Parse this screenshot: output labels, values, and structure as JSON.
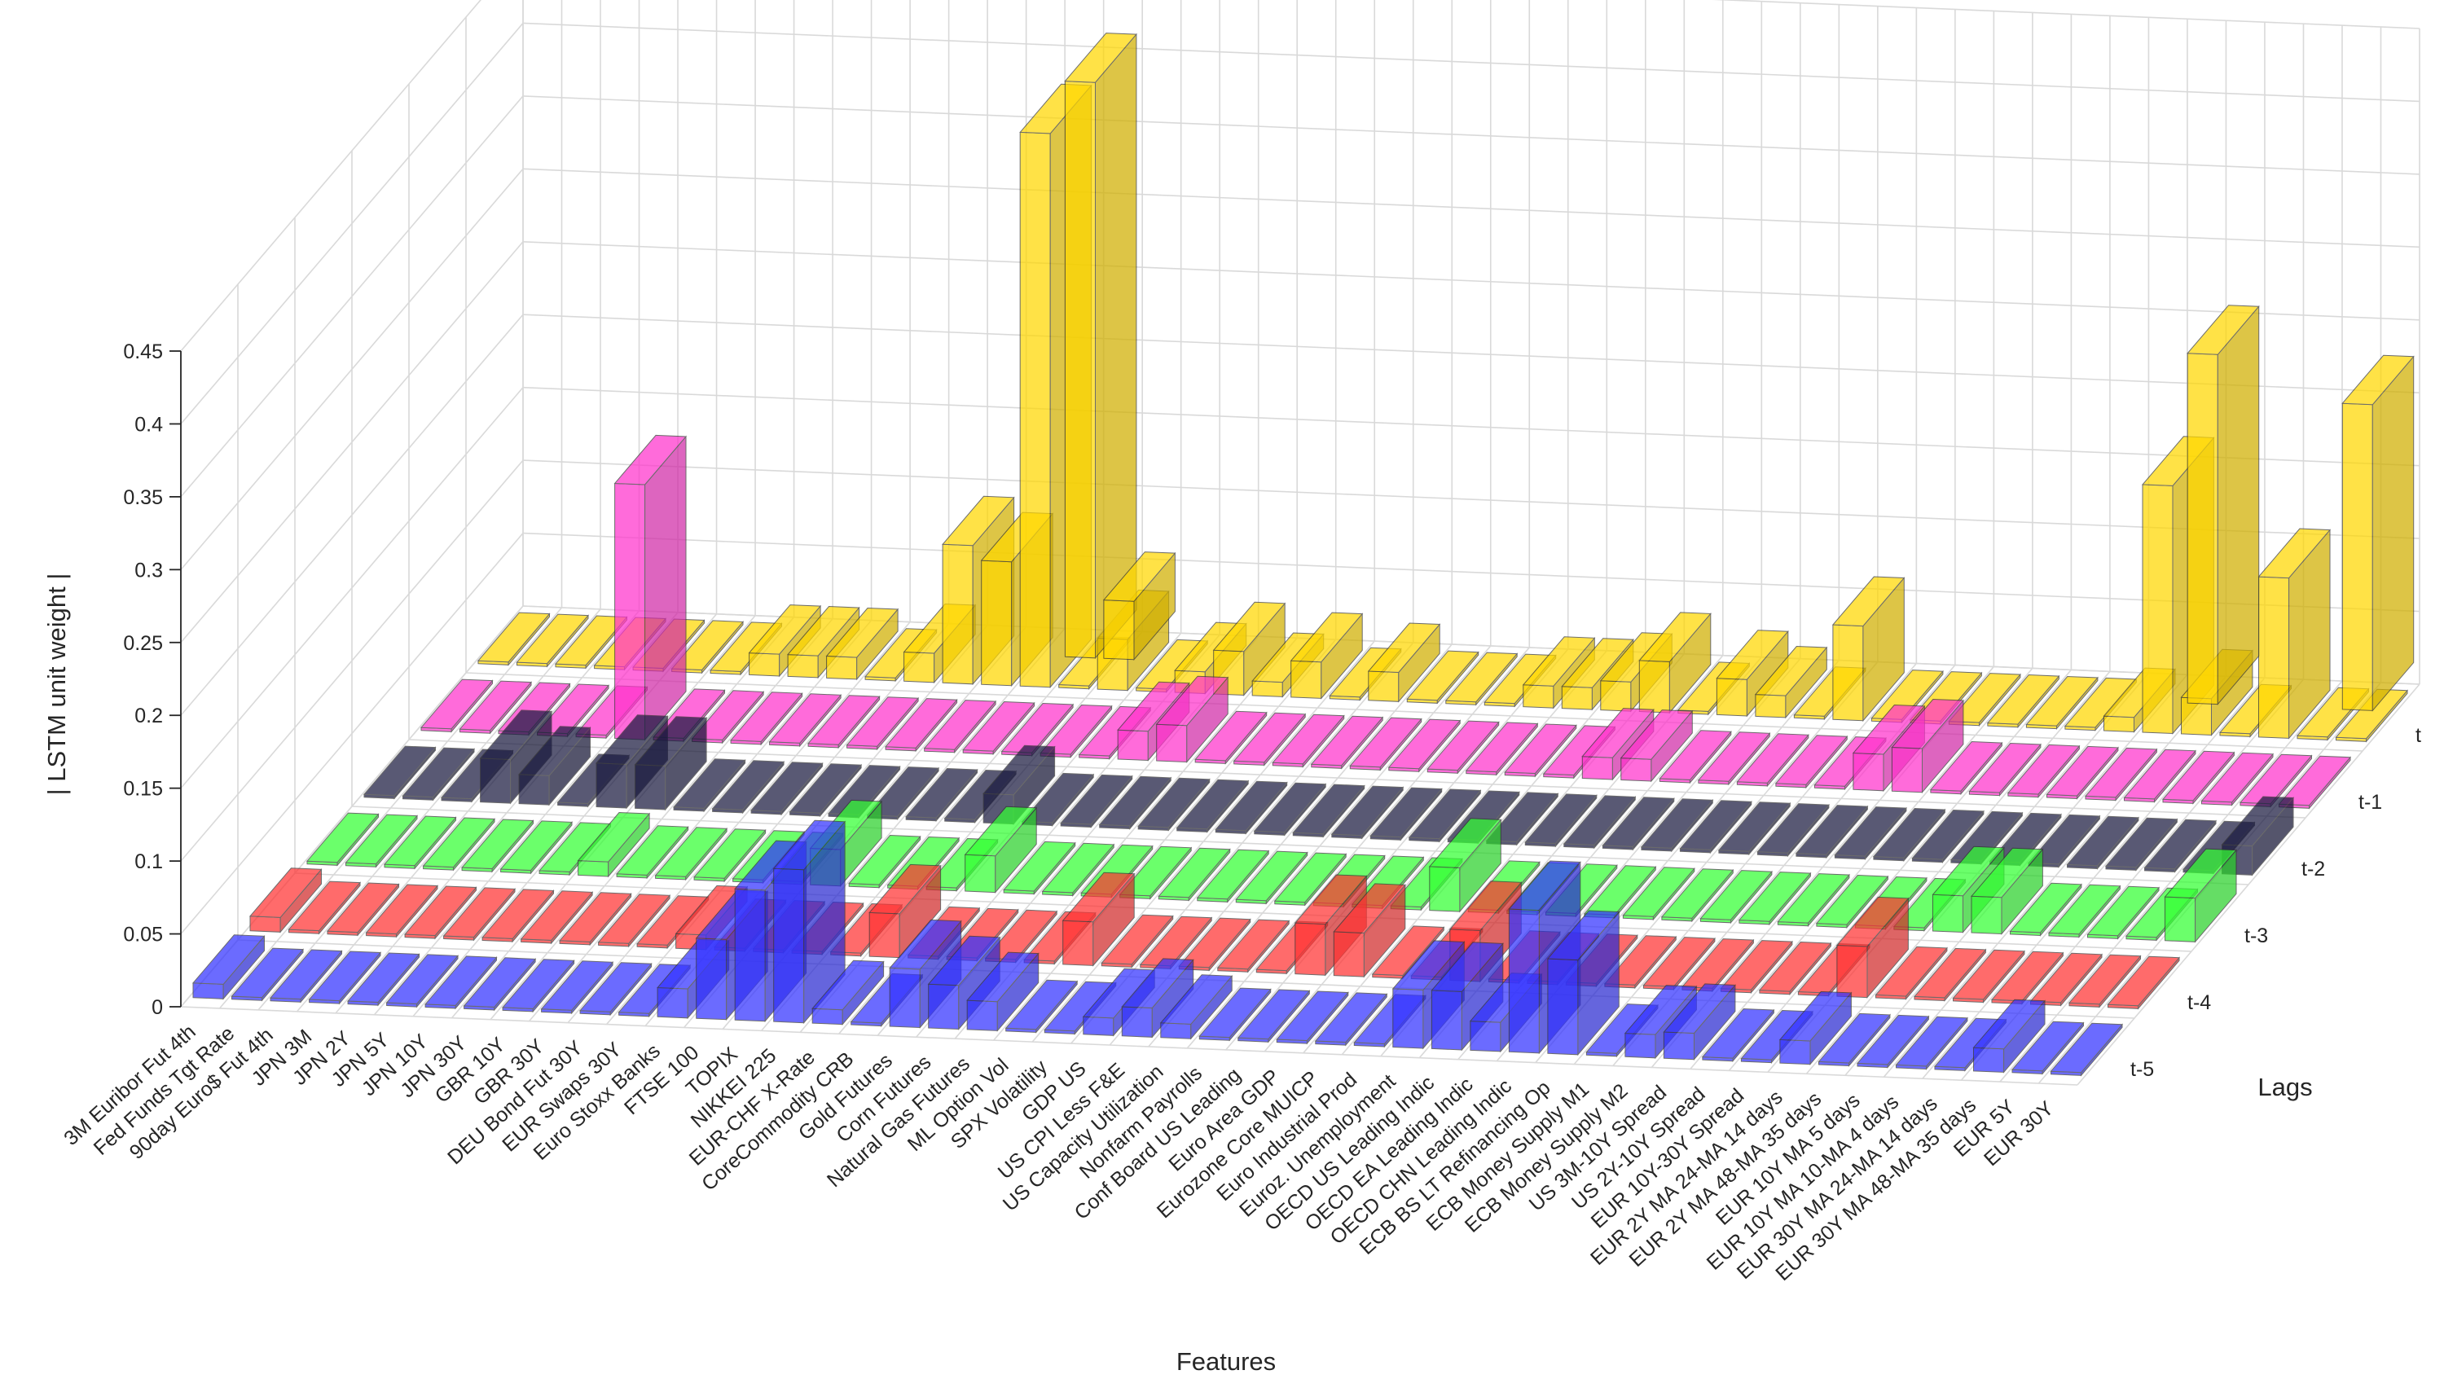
{
  "chart_data": {
    "type": "bar3d",
    "title": "",
    "xlabel": "Features",
    "ylabel": "Lags",
    "zlabel": "| LSTM unit weight |",
    "zlim": [
      0,
      0.45
    ],
    "zticks": [
      "0",
      "0.05",
      "0.1",
      "0.15",
      "0.2",
      "0.25",
      "0.3",
      "0.35",
      "0.4",
      "0.45"
    ],
    "grid": true,
    "categories": [
      "3M Euribor Fut 4th",
      "Fed Funds Tgt Rate",
      "90day Euro$ Fut 4th",
      "JPN 3M",
      "JPN 2Y",
      "JPN 5Y",
      "JPN 10Y",
      "JPN 30Y",
      "GBR 10Y",
      "GBR 30Y",
      "DEU Bond Fut 30Y",
      "EUR Swaps 30Y",
      "Euro Stoxx Banks",
      "FTSE 100",
      "TOPIX",
      "NIKKEI 225",
      "EUR-CHF X-Rate",
      "CoreCommodity CRB",
      "Gold Futures",
      "Corn Futures",
      "Natural Gas Futures",
      "ML Option Vol",
      "SPX Volatility",
      "GDP US",
      "US CPI Less F&E",
      "US Capacity Utilization",
      "Nonfarm Payrolls",
      "Conf Board US Leading",
      "Euro Area GDP",
      "Eurozone Core MUICP",
      "Euro Industrial Prod",
      "Euroz. Unemployment",
      "OECD US Leading Indic",
      "OECD EA Leading Indic",
      "OECD CHN Leading Indic",
      "ECB BS LT Refinancing Op",
      "ECB Money Supply M1",
      "ECB Money Supply M2",
      "US 3M-10Y Spread",
      "US 2Y-10Y Spread",
      "EUR 10Y-30Y Spread",
      "EUR 2Y MA 24-MA 14 days",
      "EUR 2Y MA 48-MA 35 days",
      "EUR 10Y MA 5 days",
      "EUR 10Y MA 10-MA 4 days",
      "EUR 30Y MA 24-MA 14 days",
      "EUR 30Y MA 48-MA 35 days",
      "EUR 5Y",
      "EUR 30Y"
    ],
    "series": [
      {
        "name": "t-5",
        "color": "#3333ff",
        "values": [
          0.01,
          0.002,
          0.002,
          0.002,
          0.002,
          0.002,
          0.002,
          0.002,
          0.002,
          0.002,
          0.002,
          0.002,
          0.02,
          0.055,
          0.09,
          0.105,
          0.01,
          0.002,
          0.04,
          0.03,
          0.02,
          0.002,
          0.002,
          0.012,
          0.02,
          0.01,
          0.002,
          0.002,
          0.002,
          0.002,
          0.002,
          0.04,
          0.04,
          0.02,
          0.098,
          0.065,
          0.002,
          0.016,
          0.018,
          0.002,
          0.002,
          0.016,
          0.002,
          0.002,
          0.002,
          0.002,
          0.016,
          0.002,
          0.002
        ]
      },
      {
        "name": "t-4",
        "color": "#ff3333",
        "values": [
          0.01,
          0.002,
          0.002,
          0.002,
          0.002,
          0.002,
          0.002,
          0.002,
          0.002,
          0.002,
          0.002,
          0.01,
          0.002,
          0.002,
          0.002,
          0.002,
          0.03,
          0.002,
          0.002,
          0.002,
          0.002,
          0.03,
          0.002,
          0.002,
          0.002,
          0.002,
          0.002,
          0.035,
          0.03,
          0.002,
          0.002,
          0.035,
          0.002,
          0.002,
          0.002,
          0.002,
          0.002,
          0.002,
          0.002,
          0.002,
          0.002,
          0.035,
          0.002,
          0.002,
          0.002,
          0.002,
          0.002,
          0.002,
          0.002
        ]
      },
      {
        "name": "t-3",
        "color": "#33ff33",
        "values": [
          0.002,
          0.002,
          0.002,
          0.002,
          0.002,
          0.002,
          0.002,
          0.01,
          0.002,
          0.002,
          0.002,
          0.002,
          0.002,
          0.025,
          0.002,
          0.002,
          0.002,
          0.025,
          0.002,
          0.002,
          0.002,
          0.002,
          0.002,
          0.002,
          0.002,
          0.002,
          0.002,
          0.002,
          0.002,
          0.03,
          0.002,
          0.002,
          0.002,
          0.002,
          0.002,
          0.002,
          0.002,
          0.002,
          0.002,
          0.002,
          0.002,
          0.002,
          0.025,
          0.025,
          0.002,
          0.002,
          0.002,
          0.002,
          0.03
        ]
      },
      {
        "name": "t-2",
        "color": "#1a1a40",
        "values": [
          0.002,
          0.002,
          0.002,
          0.03,
          0.02,
          0.002,
          0.03,
          0.03,
          0.002,
          0.002,
          0.002,
          0.002,
          0.002,
          0.002,
          0.002,
          0.002,
          0.02,
          0.002,
          0.002,
          0.002,
          0.002,
          0.002,
          0.002,
          0.002,
          0.002,
          0.002,
          0.002,
          0.002,
          0.002,
          0.002,
          0.002,
          0.002,
          0.002,
          0.002,
          0.002,
          0.002,
          0.002,
          0.002,
          0.002,
          0.002,
          0.002,
          0.002,
          0.002,
          0.002,
          0.002,
          0.002,
          0.002,
          0.002,
          0.02
        ]
      },
      {
        "name": "t-1",
        "color": "#ff33cc",
        "values": [
          0.002,
          0.002,
          0.002,
          0.002,
          0.002,
          0.175,
          0.002,
          0.002,
          0.002,
          0.002,
          0.002,
          0.002,
          0.002,
          0.002,
          0.002,
          0.002,
          0.002,
          0.002,
          0.02,
          0.025,
          0.002,
          0.002,
          0.002,
          0.002,
          0.002,
          0.002,
          0.002,
          0.002,
          0.002,
          0.002,
          0.015,
          0.015,
          0.002,
          0.002,
          0.002,
          0.002,
          0.002,
          0.025,
          0.03,
          0.002,
          0.002,
          0.002,
          0.002,
          0.002,
          0.002,
          0.002,
          0.002,
          0.002,
          0.002
        ]
      },
      {
        "name": "t",
        "color": "#ffd700",
        "values": [
          0.002,
          0.002,
          0.002,
          0.002,
          0.002,
          0.002,
          0.002,
          0.015,
          0.015,
          0.015,
          0.002,
          0.02,
          0.095,
          0.085,
          0.38,
          0.002,
          0.035,
          0.002,
          0.015,
          0.03,
          0.01,
          0.025,
          0.002,
          0.02,
          0.002,
          0.002,
          0.002,
          0.015,
          0.015,
          0.02,
          0.035,
          0.002,
          0.025,
          0.015,
          0.002,
          0.065,
          0.002,
          0.002,
          0.002,
          0.002,
          0.002,
          0.002,
          0.01,
          0.17,
          0.025,
          0.002,
          0.11,
          0.002,
          0.002
        ]
      }
    ],
    "series_top": [
      {
        "name": "t (rear)",
        "values": [
          0.002,
          0.002,
          0.002,
          0.002,
          0.002,
          0.002,
          0.002,
          0.002,
          0.002,
          0.002,
          0.002,
          0.002,
          0.002,
          0.002,
          0.395,
          0.04,
          0.002,
          0.002,
          0.002,
          0.002,
          0.002,
          0.002,
          0.002,
          0.002,
          0.002,
          0.002,
          0.002,
          0.002,
          0.002,
          0.002,
          0.002,
          0.002,
          0.002,
          0.002,
          0.002,
          0.002,
          0.002,
          0.002,
          0.002,
          0.002,
          0.002,
          0.002,
          0.002,
          0.24,
          0.002,
          0.002,
          0.002,
          0.21,
          0.002
        ]
      }
    ],
    "lag_labels": [
      "t",
      "t-1",
      "t-2",
      "t-3",
      "t-4",
      "t-5"
    ]
  }
}
